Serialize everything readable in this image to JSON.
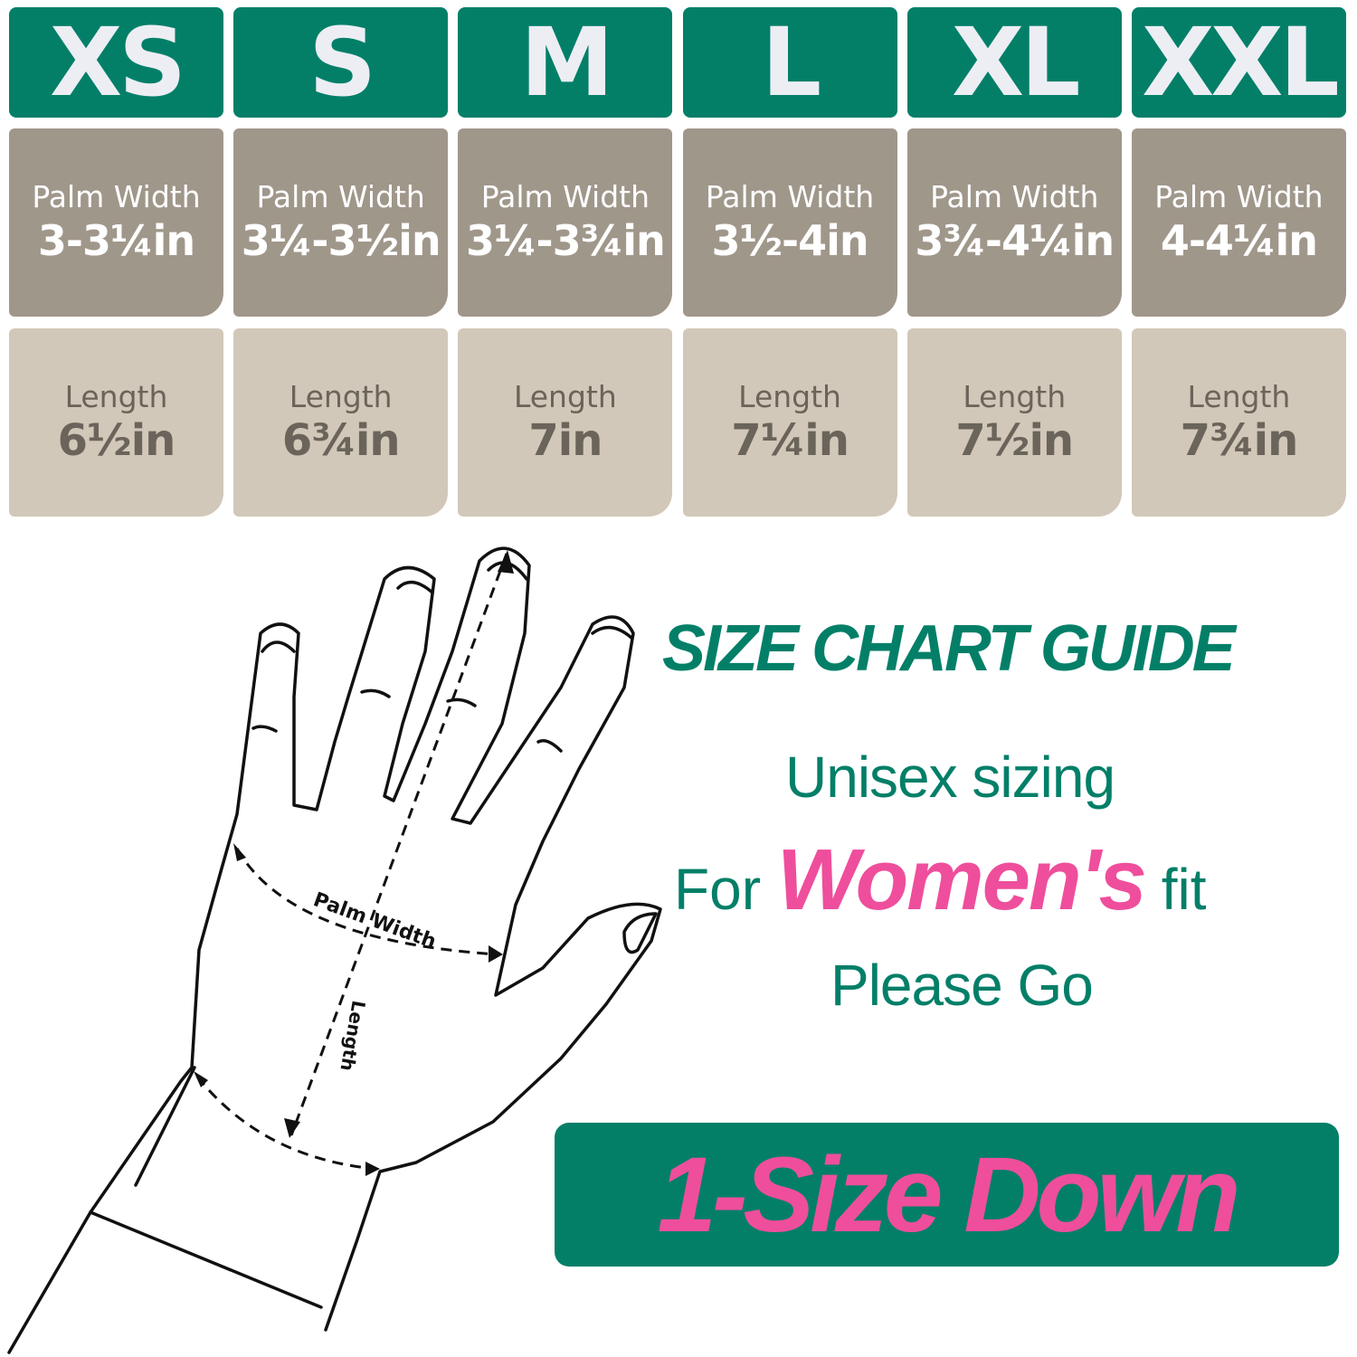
{
  "colors": {
    "brand_green": "#037f68",
    "palm_card": "#a0978b",
    "length_card": "#d1c8b9",
    "accent_pink": "#ef4e9c"
  },
  "sizes": [
    {
      "size": "XS",
      "palm_label": "Palm Width",
      "palm": "3-3¼in",
      "length_label": "Length",
      "length": "6½in"
    },
    {
      "size": "S",
      "palm_label": "Palm Width",
      "palm": "3¼-3½in",
      "length_label": "Length",
      "length": "6¾in"
    },
    {
      "size": "M",
      "palm_label": "Palm Width",
      "palm": "3¼-3¾in",
      "length_label": "Length",
      "length": "7in"
    },
    {
      "size": "L",
      "palm_label": "Palm Width",
      "palm": "3½-4in",
      "length_label": "Length",
      "length": "7¼in"
    },
    {
      "size": "XL",
      "palm_label": "Palm Width",
      "palm": "3¾-4¼in",
      "length_label": "Length",
      "length": "7½in"
    },
    {
      "size": "XXL",
      "palm_label": "Palm Width",
      "palm": "4-4¼in",
      "length_label": "Length",
      "length": "7¾in"
    }
  ],
  "diagram": {
    "palm_width_label": "Palm Width",
    "length_label": "Length"
  },
  "guide": {
    "title": "SIZE CHART GUIDE",
    "line1": "Unisex sizing",
    "line2_pre": "For",
    "line2_highlight": "Women's",
    "line2_post": "fit",
    "line3": "Please Go",
    "banner": "1-Size Down"
  }
}
